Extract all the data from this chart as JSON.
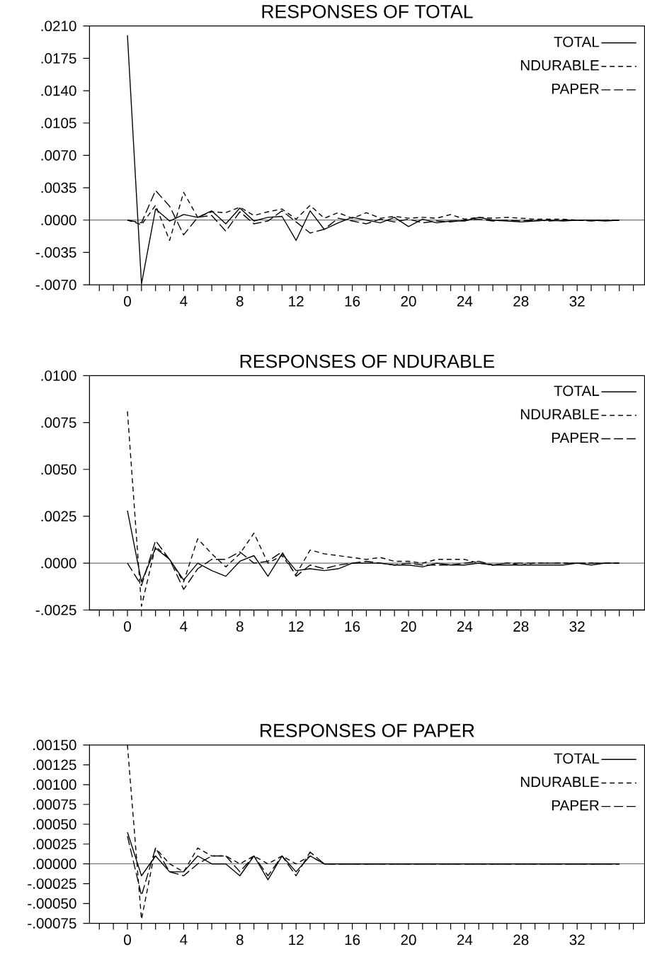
{
  "chart_data": [
    {
      "type": "line",
      "title": "RESPONSES OF TOTAL",
      "legend": "top right",
      "grid": false,
      "marker": "none",
      "x": [
        0,
        1,
        2,
        3,
        4,
        5,
        6,
        7,
        8,
        9,
        10,
        11,
        12,
        13,
        14,
        15,
        16,
        17,
        18,
        19,
        20,
        21,
        22,
        23,
        24,
        25,
        26,
        27,
        28,
        29,
        30,
        31,
        32,
        33,
        34,
        35
      ],
      "series": [
        {
          "name": "TOTAL",
          "color": "#000000",
          "line_style": "solid",
          "values": [
            0.02,
            -0.0069,
            0.0012,
            -0.0001,
            0.0006,
            0.0003,
            0.001,
            -0.0004,
            0.0013,
            -0.0001,
            0.0003,
            0.0004,
            -0.0022,
            0.001,
            -0.001,
            -0.0003,
            0.0003,
            0.0,
            -0.0003,
            0.0003,
            -0.0007,
            0.0001,
            -0.0003,
            -0.0001,
            -0.0001,
            0.0003,
            0.0,
            -0.0001,
            -0.0002,
            -0.0001,
            0.0,
            -0.0001,
            0.0,
            0.0,
            -0.0001,
            0.0
          ]
        },
        {
          "name": "NDURABLE",
          "color": "#000000",
          "line_style": "dashed",
          "values": [
            0.0,
            -0.0005,
            0.0016,
            -0.0022,
            0.003,
            0.0003,
            0.0009,
            0.0008,
            0.0014,
            0.0005,
            0.0009,
            0.0012,
            0.0001,
            0.0016,
            0.0002,
            0.0008,
            0.0002,
            0.0008,
            0.0002,
            0.0004,
            0.0002,
            0.0003,
            0.0002,
            0.0006,
            0.0001,
            0.0003,
            0.0002,
            0.0003,
            0.0002,
            0.0001,
            0.0001,
            0.0001,
            0.0,
            0.0,
            0.0,
            0.0
          ]
        },
        {
          "name": "PAPER",
          "color": "#000000",
          "line_style": "dashed",
          "values": [
            0.0,
            -0.0003,
            0.0032,
            0.0015,
            -0.0016,
            0.0003,
            0.0005,
            -0.0012,
            0.0009,
            -0.0004,
            -0.0001,
            0.001,
            -0.0002,
            -0.0014,
            -0.001,
            0.0002,
            -0.0001,
            -0.0004,
            0.0001,
            -0.0002,
            0.0001,
            -0.0003,
            -0.0001,
            -0.0002,
            0.0,
            0.0001,
            -0.0001,
            0.0,
            -0.0001,
            0.0,
            -0.0001,
            0.0,
            0.0,
            -0.0001,
            0.0,
            0.0
          ]
        }
      ],
      "xlim": [
        -2.7,
        36.8
      ],
      "xticks": [
        {
          "value": -2,
          "label": null
        },
        {
          "value": -1,
          "label": null
        },
        0,
        {
          "value": 1,
          "label": null
        },
        {
          "value": 2,
          "label": null
        },
        {
          "value": 3,
          "label": null
        },
        4,
        {
          "value": 5,
          "label": null
        },
        {
          "value": 6,
          "label": null
        },
        {
          "value": 7,
          "label": null
        },
        8,
        {
          "value": 9,
          "label": null
        },
        {
          "value": 10,
          "label": null
        },
        {
          "value": 11,
          "label": null
        },
        12,
        {
          "value": 13,
          "label": null
        },
        {
          "value": 14,
          "label": null
        },
        {
          "value": 15,
          "label": null
        },
        16,
        {
          "value": 17,
          "label": null
        },
        {
          "value": 18,
          "label": null
        },
        {
          "value": 19,
          "label": null
        },
        20,
        {
          "value": 21,
          "label": null
        },
        {
          "value": 22,
          "label": null
        },
        {
          "value": 23,
          "label": null
        },
        24,
        {
          "value": 25,
          "label": null
        },
        {
          "value": 26,
          "label": null
        },
        {
          "value": 27,
          "label": null
        },
        28,
        {
          "value": 29,
          "label": null
        },
        {
          "value": 30,
          "label": null
        },
        {
          "value": 31,
          "label": null
        },
        32,
        {
          "value": 33,
          "label": null
        },
        {
          "value": 34,
          "label": null
        },
        {
          "value": 35,
          "label": null
        },
        {
          "value": 36,
          "label": null
        }
      ],
      "ylim": [
        -0.007,
        0.021
      ],
      "yticks": [
        {
          "value": -0.007,
          "label": "-.0070"
        },
        {
          "value": -0.0035,
          "label": "-.0035"
        },
        {
          "value": 0,
          "label": ".0000"
        },
        {
          "value": 0.0035,
          "label": ".0035"
        },
        {
          "value": 0.007,
          "label": ".0070"
        },
        {
          "value": 0.0105,
          "label": ".0105"
        },
        {
          "value": 0.014,
          "label": ".0140"
        },
        {
          "value": 0.0175,
          "label": ".0175"
        },
        {
          "value": 0.021,
          "label": ".0210"
        }
      ],
      "ref_lines": [
        {
          "axis": "y",
          "value": 0,
          "color": "#000000",
          "line_style": "solid"
        }
      ]
    },
    {
      "type": "line",
      "title": "RESPONSES OF NDURABLE",
      "legend": "top right",
      "grid": false,
      "marker": "none",
      "x": [
        0,
        1,
        2,
        3,
        4,
        5,
        6,
        7,
        8,
        9,
        10,
        11,
        12,
        13,
        14,
        15,
        16,
        17,
        18,
        19,
        20,
        21,
        22,
        23,
        24,
        25,
        26,
        27,
        28,
        29,
        30,
        31,
        32,
        33,
        34,
        35
      ],
      "series": [
        {
          "name": "TOTAL",
          "color": "#000000",
          "line_style": "solid",
          "values": [
            0.0028,
            -0.001,
            0.0008,
            0.0002,
            -0.0009,
            0.0,
            -0.0004,
            -0.0007,
            0.0001,
            0.0004,
            -0.0007,
            0.0005,
            -0.0004,
            -0.0003,
            -0.0004,
            -0.0003,
            0.0,
            0.0,
            0.0,
            -0.0001,
            -0.0001,
            -0.0002,
            0.0,
            -0.0001,
            -0.0001,
            0.0,
            -0.0001,
            -0.0001,
            -0.0001,
            -0.0001,
            -0.0001,
            -0.0001,
            0.0,
            -0.0001,
            0.0,
            0.0
          ]
        },
        {
          "name": "NDURABLE",
          "color": "#000000",
          "line_style": "dashed",
          "values": [
            0.0081,
            -0.0023,
            0.0009,
            0.0002,
            -0.001,
            0.0013,
            0.0005,
            -0.0002,
            0.0005,
            0.0016,
            0.0,
            0.0004,
            -0.0006,
            0.0007,
            0.0005,
            0.0004,
            0.0003,
            0.0002,
            0.0003,
            0.0001,
            0.0001,
            0.0,
            0.0002,
            0.0002,
            0.0002,
            0.0,
            -0.0001,
            0.0,
            -0.0001,
            0.0,
            0.0,
            0.0,
            0.0,
            0.0,
            0.0,
            0.0
          ]
        },
        {
          "name": "PAPER",
          "color": "#000000",
          "line_style": "dashed",
          "values": [
            0.0,
            -0.0012,
            0.0012,
            0.0002,
            -0.0014,
            -0.0003,
            0.0002,
            0.0002,
            0.0006,
            0.0,
            0.0001,
            0.0006,
            -0.0007,
            -0.0001,
            -0.0003,
            -0.0001,
            0.0,
            0.0001,
            0.0,
            -0.0001,
            0.0,
            -0.0001,
            -0.0001,
            -0.0001,
            0.0,
            0.0001,
            -0.0001,
            0.0,
            0.0,
            0.0,
            0.0,
            0.0,
            0.0,
            0.0,
            0.0,
            0.0
          ]
        }
      ],
      "xlim": [
        -2.7,
        36.8
      ],
      "xticks": [
        {
          "value": -2,
          "label": null
        },
        {
          "value": -1,
          "label": null
        },
        0,
        {
          "value": 1,
          "label": null
        },
        {
          "value": 2,
          "label": null
        },
        {
          "value": 3,
          "label": null
        },
        4,
        {
          "value": 5,
          "label": null
        },
        {
          "value": 6,
          "label": null
        },
        {
          "value": 7,
          "label": null
        },
        8,
        {
          "value": 9,
          "label": null
        },
        {
          "value": 10,
          "label": null
        },
        {
          "value": 11,
          "label": null
        },
        12,
        {
          "value": 13,
          "label": null
        },
        {
          "value": 14,
          "label": null
        },
        {
          "value": 15,
          "label": null
        },
        16,
        {
          "value": 17,
          "label": null
        },
        {
          "value": 18,
          "label": null
        },
        {
          "value": 19,
          "label": null
        },
        20,
        {
          "value": 21,
          "label": null
        },
        {
          "value": 22,
          "label": null
        },
        {
          "value": 23,
          "label": null
        },
        24,
        {
          "value": 25,
          "label": null
        },
        {
          "value": 26,
          "label": null
        },
        {
          "value": 27,
          "label": null
        },
        28,
        {
          "value": 29,
          "label": null
        },
        {
          "value": 30,
          "label": null
        },
        {
          "value": 31,
          "label": null
        },
        32,
        {
          "value": 33,
          "label": null
        },
        {
          "value": 34,
          "label": null
        },
        {
          "value": 35,
          "label": null
        },
        {
          "value": 36,
          "label": null
        }
      ],
      "ylim": [
        -0.0025,
        0.01
      ],
      "yticks": [
        {
          "value": -0.0025,
          "label": "-.0025"
        },
        {
          "value": 0,
          "label": ".0000"
        },
        {
          "value": 0.0025,
          "label": ".0025"
        },
        {
          "value": 0.005,
          "label": ".0050"
        },
        {
          "value": 0.0075,
          "label": ".0075"
        },
        {
          "value": 0.01,
          "label": ".0100"
        }
      ],
      "ref_lines": [
        {
          "axis": "y",
          "value": 0,
          "color": "#000000",
          "line_style": "solid"
        }
      ]
    },
    {
      "type": "line",
      "title": "RESPONSES OF PAPER",
      "legend": "top right",
      "grid": false,
      "marker": "none",
      "x": [
        0,
        1,
        2,
        3,
        4,
        5,
        6,
        7,
        8,
        9,
        10,
        11,
        12,
        13,
        14,
        15,
        16,
        17,
        18,
        19,
        20,
        21,
        22,
        23,
        24,
        25,
        26,
        27,
        28,
        29,
        30,
        31,
        32,
        33,
        34,
        35
      ],
      "series": [
        {
          "name": "TOTAL",
          "color": "#000000",
          "line_style": "solid",
          "values": [
            0.0004,
            -0.00015,
            0.0001,
            -0.0001,
            -0.0001,
            0.0001,
            0.0,
            0.0,
            -0.00015,
            0.0001,
            -0.0002,
            0.0001,
            -0.0001,
            0.0001,
            0.0,
            0.0,
            0.0,
            0.0,
            0.0,
            0.0,
            0.0,
            0.0,
            0.0,
            0.0,
            0.0,
            0.0,
            0.0,
            0.0,
            0.0,
            0.0,
            0.0,
            0.0,
            0.0,
            0.0,
            0.0,
            0.0
          ]
        },
        {
          "name": "NDURABLE",
          "color": "#000000",
          "line_style": "dashed",
          "values": [
            0.0015,
            -0.0007,
            0.0002,
            0.0,
            -0.0001,
            0.0002,
            0.0001,
            0.0001,
            0.0,
            0.0001,
            0.0,
            0.0001,
            0.0,
            0.0001,
            0.0,
            0.0,
            0.0,
            0.0,
            0.0,
            0.0,
            0.0,
            0.0,
            0.0,
            0.0,
            0.0,
            0.0,
            0.0,
            0.0,
            0.0,
            0.0,
            0.0,
            0.0,
            0.0,
            0.0,
            0.0,
            0.0
          ]
        },
        {
          "name": "PAPER",
          "color": "#000000",
          "line_style": "dashed",
          "values": [
            0.00035,
            -0.0004,
            0.0002,
            -0.0001,
            -0.00015,
            0.0,
            0.0001,
            0.0001,
            -0.0001,
            0.0001,
            -0.00015,
            0.0001,
            -0.00015,
            0.00015,
            0.0,
            0.0,
            0.0,
            0.0,
            0.0,
            0.0,
            0.0,
            0.0,
            0.0,
            0.0,
            0.0,
            0.0,
            0.0,
            0.0,
            0.0,
            0.0,
            0.0,
            0.0,
            0.0,
            0.0,
            0.0,
            0.0
          ]
        }
      ],
      "xlim": [
        -2.7,
        36.8
      ],
      "xticks": [
        {
          "value": -2,
          "label": null
        },
        {
          "value": -1,
          "label": null
        },
        0,
        {
          "value": 1,
          "label": null
        },
        {
          "value": 2,
          "label": null
        },
        {
          "value": 3,
          "label": null
        },
        4,
        {
          "value": 5,
          "label": null
        },
        {
          "value": 6,
          "label": null
        },
        {
          "value": 7,
          "label": null
        },
        8,
        {
          "value": 9,
          "label": null
        },
        {
          "value": 10,
          "label": null
        },
        {
          "value": 11,
          "label": null
        },
        12,
        {
          "value": 13,
          "label": null
        },
        {
          "value": 14,
          "label": null
        },
        {
          "value": 15,
          "label": null
        },
        16,
        {
          "value": 17,
          "label": null
        },
        {
          "value": 18,
          "label": null
        },
        {
          "value": 19,
          "label": null
        },
        20,
        {
          "value": 21,
          "label": null
        },
        {
          "value": 22,
          "label": null
        },
        {
          "value": 23,
          "label": null
        },
        24,
        {
          "value": 25,
          "label": null
        },
        {
          "value": 26,
          "label": null
        },
        {
          "value": 27,
          "label": null
        },
        28,
        {
          "value": 29,
          "label": null
        },
        {
          "value": 30,
          "label": null
        },
        {
          "value": 31,
          "label": null
        },
        32,
        {
          "value": 33,
          "label": null
        },
        {
          "value": 34,
          "label": null
        },
        {
          "value": 35,
          "label": null
        },
        {
          "value": 36,
          "label": null
        }
      ],
      "ylim": [
        -0.00075,
        0.0015
      ],
      "yticks": [
        {
          "value": -0.00075,
          "label": "-.00075"
        },
        {
          "value": -0.0005,
          "label": "-.00050"
        },
        {
          "value": -0.00025,
          "label": "-.00025"
        },
        {
          "value": 0,
          "label": ".00000"
        },
        {
          "value": 0.00025,
          "label": ".00025"
        },
        {
          "value": 0.0005,
          "label": ".00050"
        },
        {
          "value": 0.00075,
          "label": ".00075"
        },
        {
          "value": 0.001,
          "label": ".00100"
        },
        {
          "value": 0.00125,
          "label": ".00125"
        },
        {
          "value": 0.0015,
          "label": ".00150"
        }
      ],
      "ref_lines": [
        {
          "axis": "y",
          "value": 0,
          "color": "#000000",
          "line_style": "solid"
        }
      ]
    }
  ]
}
